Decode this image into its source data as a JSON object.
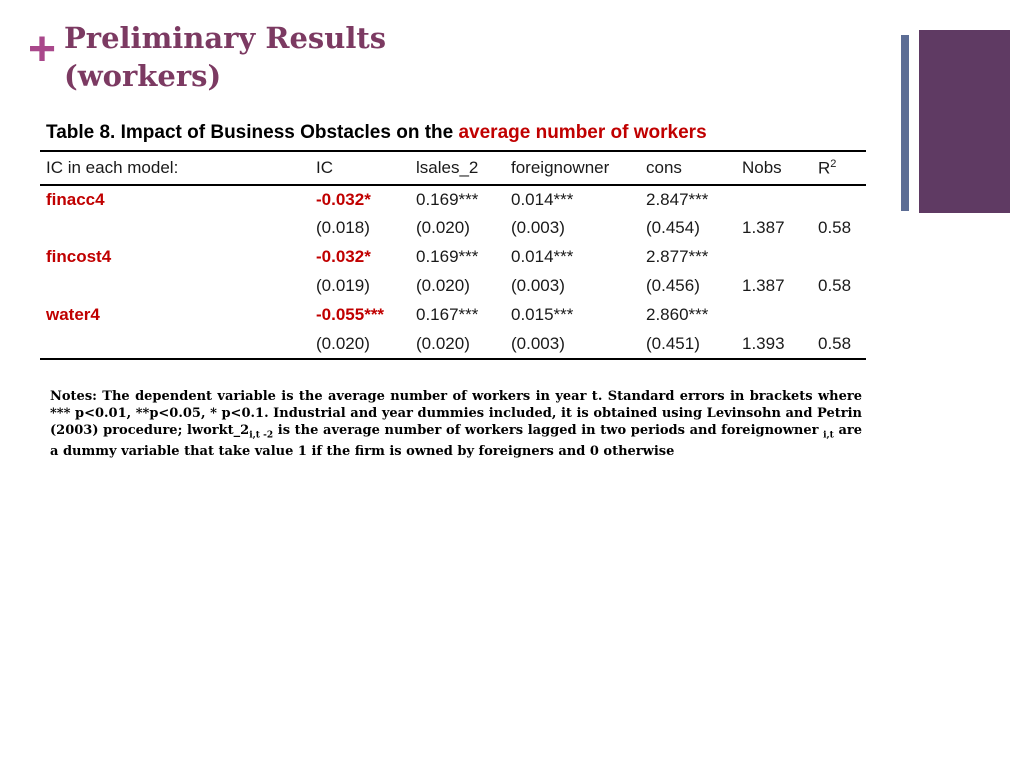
{
  "decor": {
    "plus": "+"
  },
  "header": {
    "title_line1": "Preliminary Results",
    "title_line2": "(workers)"
  },
  "table": {
    "caption_black": "Table 8. Impact of Business Obstacles on the ",
    "caption_red": "average number of workers",
    "headers": [
      "IC in each model:",
      "IC",
      "lsales_2",
      "foreignowner",
      "cons",
      "Nobs"
    ],
    "r2_header": {
      "base": "R",
      "sup": "2"
    },
    "rows": [
      {
        "cells": [
          "finacc4",
          "-0.032*",
          "0.169***",
          "0.014***",
          "2.847***",
          "",
          ""
        ]
      },
      {
        "cells": [
          "",
          "(0.018)",
          "(0.020)",
          "(0.003)",
          "(0.454)",
          "1.387",
          "0.58"
        ]
      },
      {
        "cells": [
          "fincost4",
          "-0.032*",
          "0.169***",
          "0.014***",
          "2.877***",
          "",
          ""
        ]
      },
      {
        "cells": [
          "",
          "(0.019)",
          "(0.020)",
          "(0.003)",
          "(0.456)",
          "1.387",
          "0.58"
        ]
      },
      {
        "cells": [
          "water4",
          "-0.055***",
          "0.167***",
          "0.015***",
          "2.860***",
          "",
          ""
        ]
      },
      {
        "cells": [
          "",
          "(0.020)",
          "(0.020)",
          "(0.003)",
          "(0.451)",
          "1.393",
          "0.58"
        ]
      }
    ]
  },
  "notes": {
    "part1": "Notes: The dependent variable is the average number of workers in year t. Standard errors in brackets where *** p<0.01, **p<0.05, * p<0.1. Industrial and year dummies included, it is obtained using Levinsohn and Petrin (2003) procedure; lworkt_2",
    "sub1": "i,t -2",
    "part2": " is the average number of workers lagged in two periods and foreignowner ",
    "sub2": "i,t",
    "part3": " are a dummy variable that take value 1 if the firm is owned by foreigners and 0 otherwise"
  }
}
